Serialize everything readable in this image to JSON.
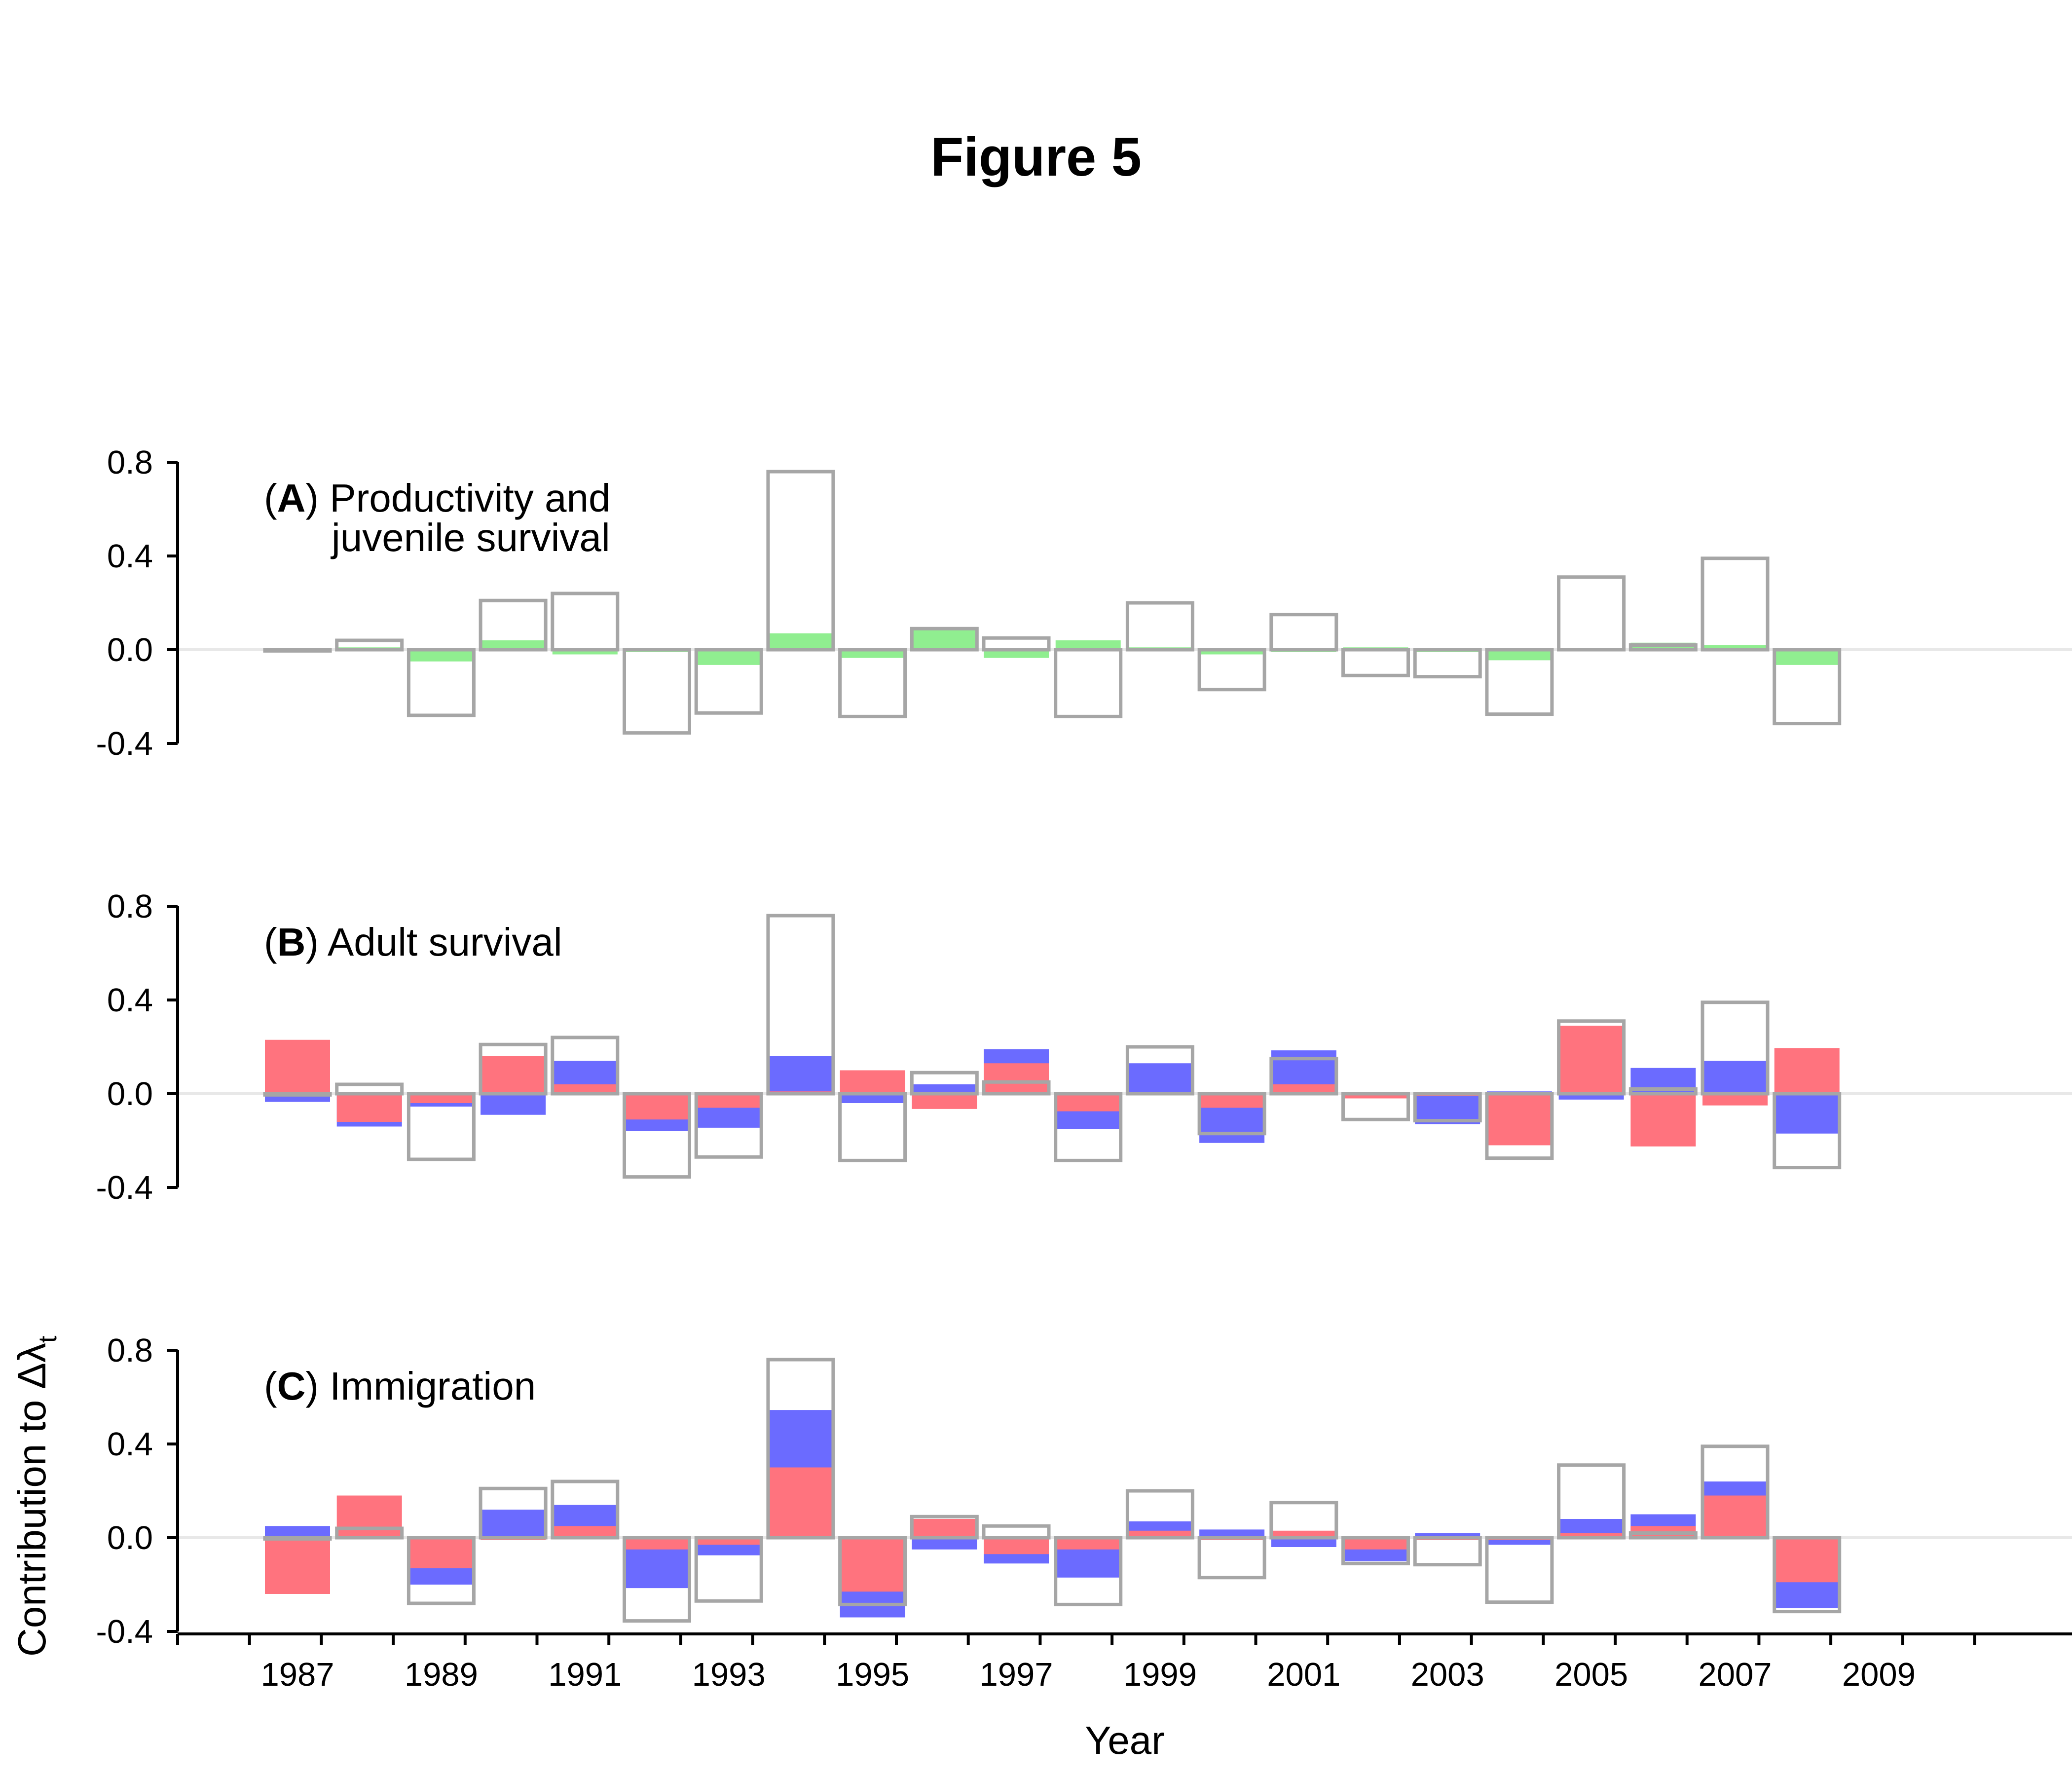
{
  "figure_title": "Figure 5",
  "colors": {
    "total_outline": "#a6a6a6",
    "productivity": "#90ee90",
    "adult_survival": "#ff737e",
    "immigration_blue": "#6b6bff",
    "immigration_red": "#ff737e",
    "zero_line": "#e8e8e8"
  },
  "chart_data": {
    "type": "bar",
    "xlabel": "Year",
    "ylabel": "Contribution to Δλ",
    "ylabel_subscript": "t",
    "ylim": [
      -0.4,
      0.8
    ],
    "yticks": [
      "0.8",
      "0.4",
      "0.0",
      "-0.4"
    ],
    "xtick_labels": [
      "1987",
      "1989",
      "1991",
      "1993",
      "1995",
      "1997",
      "1999",
      "2001",
      "2003",
      "2005",
      "2007",
      "2009"
    ],
    "years": [
      1987,
      1988,
      1989,
      1990,
      1991,
      1992,
      1993,
      1994,
      1995,
      1996,
      1997,
      1998,
      1999,
      2000,
      2001,
      2002,
      2003,
      2004,
      2005,
      2006,
      2007,
      2008
    ],
    "total_delta_lambda": [
      -0.005,
      0.04,
      -0.28,
      0.21,
      0.24,
      -0.355,
      -0.27,
      0.76,
      -0.285,
      0.09,
      0.05,
      -0.285,
      0.2,
      -0.17,
      0.15,
      -0.11,
      -0.115,
      -0.275,
      0.31,
      0.02,
      0.39,
      -0.315
    ],
    "panels": [
      {
        "letter": "A",
        "title_line1": "Productivity and",
        "title_line2": "juvenile survival",
        "series": [
          {
            "color_key": "productivity",
            "values": [
              -0.01,
              0.01,
              -0.05,
              0.04,
              -0.02,
              -0.01,
              -0.065,
              0.07,
              -0.035,
              0.09,
              -0.035,
              0.04,
              0.01,
              -0.02,
              -0.01,
              0.01,
              -0.01,
              -0.045,
              0.005,
              0.03,
              0.02,
              -0.065
            ]
          }
        ]
      },
      {
        "letter": "B",
        "title_line1": "Adult survival",
        "title_line2": "",
        "series": [
          {
            "color_key": "adult_survival",
            "values": [
              0.23,
              -0.12,
              -0.04,
              0.16,
              0.04,
              -0.11,
              -0.06,
              0.01,
              0.1,
              -0.065,
              0.13,
              -0.075,
              0.005,
              -0.06,
              0.04,
              -0.02,
              -0.01,
              -0.22,
              0.29,
              -0.225,
              -0.05,
              0.195
            ]
          },
          {
            "color_key": "immigration_blue",
            "values": [
              -0.035,
              -0.14,
              -0.055,
              -0.09,
              0.14,
              -0.16,
              -0.145,
              0.16,
              -0.04,
              0.04,
              0.19,
              -0.15,
              0.13,
              -0.21,
              0.185,
              -0.005,
              -0.13,
              0.01,
              -0.025,
              0.11,
              0.14,
              -0.17
            ]
          }
        ]
      },
      {
        "letter": "C",
        "title_line1": "Immigration",
        "title_line2": "",
        "series": [
          {
            "color_key": "immigration_red",
            "values": [
              -0.24,
              0.18,
              -0.13,
              -0.01,
              0.05,
              -0.05,
              -0.03,
              0.3,
              -0.23,
              0.08,
              -0.07,
              -0.05,
              0.03,
              -0.01,
              0.03,
              -0.05,
              -0.01,
              -0.01,
              0.02,
              0.05,
              0.18,
              -0.19
            ]
          },
          {
            "color_key": "immigration_blue",
            "values": [
              0.05,
              0.0,
              -0.2,
              0.12,
              0.14,
              -0.215,
              -0.075,
              0.545,
              -0.34,
              -0.05,
              -0.11,
              -0.17,
              0.07,
              0.035,
              -0.04,
              -0.1,
              0.02,
              -0.03,
              0.08,
              0.1,
              0.24,
              -0.3
            ]
          }
        ]
      }
    ]
  }
}
